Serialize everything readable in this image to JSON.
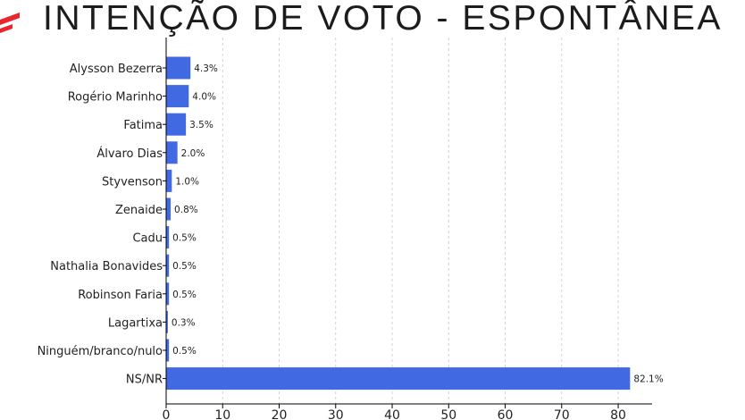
{
  "title": "INTENÇÃO DE VOTO - ESPONTÂNEA",
  "colors": {
    "bar": "#4169e1",
    "accent": "#e8262b",
    "grid": "#c8c8c8",
    "text": "#222222"
  },
  "chart_data": {
    "type": "bar",
    "orientation": "horizontal",
    "title": "INTENÇÃO DE VOTO - ESPONTÂNEA",
    "categories": [
      "Alysson Bezerra",
      "Rogério Marinho",
      "Fatima",
      "Álvaro Dias",
      "Styvenson",
      "Zenaide",
      "Cadu",
      "Nathalia Bonavides",
      "Robinson Faria",
      "Lagartixa",
      "Ninguém/branco/nulo",
      "NS/NR"
    ],
    "values": [
      4.3,
      4.0,
      3.5,
      2.0,
      1.0,
      0.8,
      0.5,
      0.5,
      0.5,
      0.3,
      0.5,
      82.1
    ],
    "value_labels": [
      "4.3%",
      "4.0%",
      "3.5%",
      "2.0%",
      "1.0%",
      "0.8%",
      "0.5%",
      "0.5%",
      "0.5%",
      "0.3%",
      "0.5%",
      "82.1%"
    ],
    "xlim": [
      0,
      86
    ],
    "xticks": [
      0,
      10,
      20,
      30,
      40,
      50,
      60,
      70,
      80
    ],
    "grid": "vertical dashed",
    "legend": "none"
  }
}
